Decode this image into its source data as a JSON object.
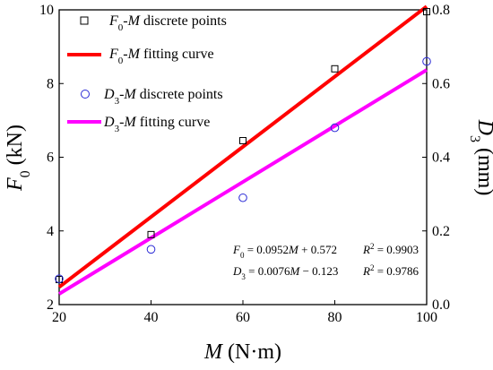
{
  "chart_data": {
    "type": "scatter",
    "x": [
      20,
      40,
      60,
      80,
      100
    ],
    "xlabel": "M (N·m)",
    "xlim": [
      20,
      100
    ],
    "x_ticks": [
      20,
      40,
      60,
      80,
      100
    ],
    "ylabel_left": "F0 (kN)",
    "ylim_left": [
      2,
      10
    ],
    "y_ticks_left": [
      2,
      4,
      6,
      8,
      10
    ],
    "ylabel_right": "D3 (mm)",
    "ylim_right": [
      0.0,
      0.8
    ],
    "y_ticks_right": [
      "0.0",
      "0.2",
      "0.4",
      "0.6",
      "0.8"
    ],
    "grid": false,
    "legend_position": "top-left",
    "series": [
      {
        "name": "F0-M discrete points",
        "kind": "points",
        "marker": "open-square",
        "axis": "left",
        "color": "#000000",
        "values": [
          2.68,
          3.9,
          6.45,
          8.4,
          9.95
        ]
      },
      {
        "name": "F0-M fitting curve",
        "kind": "line",
        "axis": "left",
        "color": "#ff0000",
        "slope": 0.0952,
        "intercept": 0.572
      },
      {
        "name": "D3-M discrete points",
        "kind": "points",
        "marker": "open-circle",
        "axis": "right",
        "color": "#2b2bd6",
        "values": [
          0.07,
          0.15,
          0.29,
          0.48,
          0.66
        ]
      },
      {
        "name": "D3-M fitting curve",
        "kind": "line",
        "axis": "right",
        "color": "#ff00ff",
        "slope": 0.0076,
        "intercept": -0.123
      }
    ],
    "annotations": {
      "eq1": "F0 = 0.0952M + 0.572",
      "eq1_r2": "R² = 0.9903",
      "eq2": "D3 = 0.0076M − 0.123",
      "eq2_r2": "R² = 0.9786"
    }
  }
}
